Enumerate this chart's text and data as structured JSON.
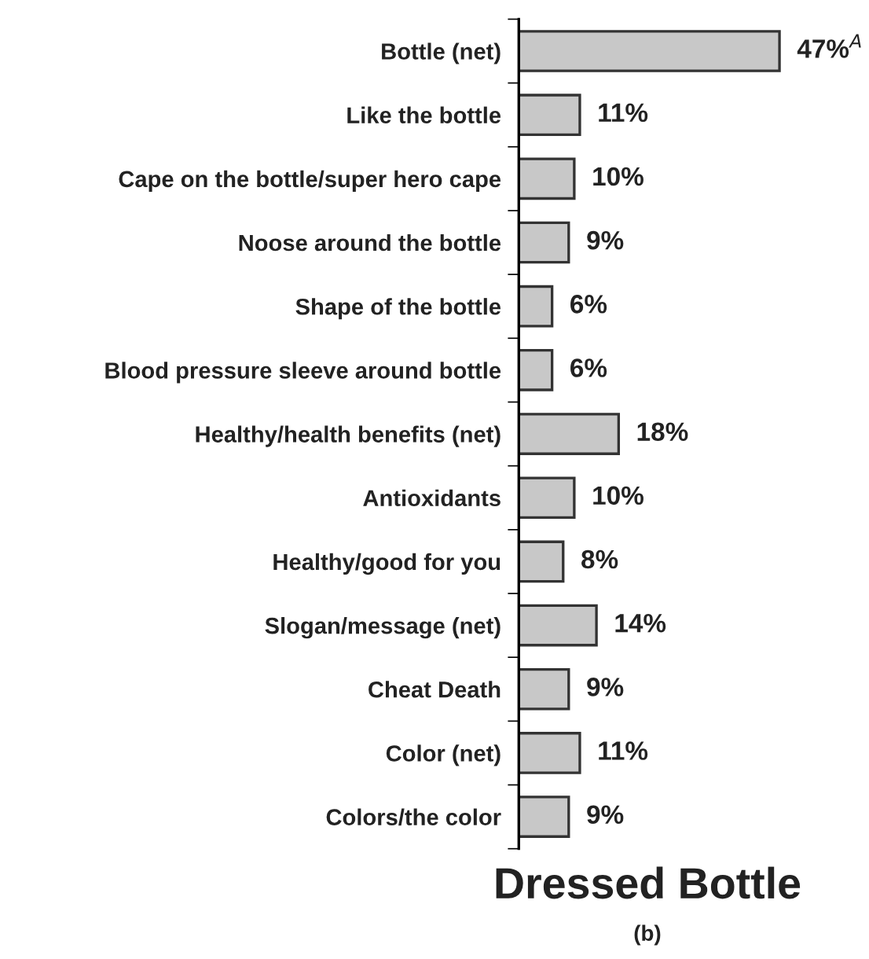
{
  "chart_data": {
    "type": "bar",
    "orientation": "horizontal",
    "title": "Dressed Bottle",
    "categories": [
      "Bottle (net)",
      "Like the bottle",
      "Cape on the bottle/super hero cape",
      "Noose around the bottle",
      "Shape of the bottle",
      "Blood pressure sleeve around bottle",
      "Healthy/health benefits (net)",
      "Antioxidants",
      "Healthy/good for you",
      "Slogan/message (net)",
      "Cheat Death",
      "Color (net)",
      "Colors/the color"
    ],
    "values": [
      47,
      11,
      10,
      9,
      6,
      6,
      18,
      10,
      8,
      14,
      9,
      11,
      9
    ],
    "value_labels": [
      "47%$^{A}$",
      "11%",
      "10%",
      "9%",
      "6%",
      "6%",
      "18%",
      "10%",
      "8%",
      "14%",
      "9%",
      "11%",
      "9%"
    ],
    "color": "#c8c8c8",
    "annotations": [
      "(b)"
    ],
    "grid": false,
    "legend": false
  }
}
